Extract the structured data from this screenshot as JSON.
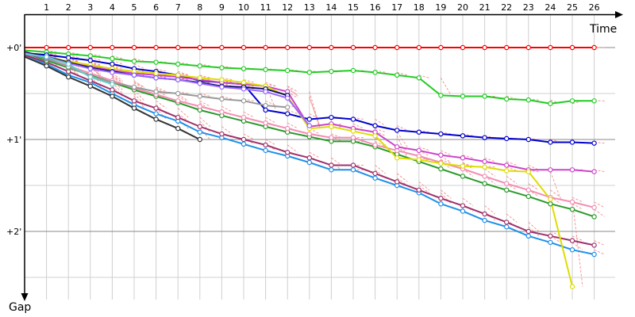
{
  "chart_data": {
    "type": "line",
    "title": "",
    "xlabel": "Time",
    "ylabel": "Gap",
    "x_ticks": [
      1,
      2,
      3,
      4,
      5,
      6,
      7,
      8,
      9,
      10,
      11,
      12,
      13,
      14,
      15,
      16,
      17,
      18,
      19,
      20,
      21,
      22,
      23,
      24,
      25,
      26
    ],
    "y_ticks": [
      {
        "value": 0,
        "label": "+0'"
      },
      {
        "value": 1,
        "label": "+1'"
      },
      {
        "value": 2,
        "label": "+2'"
      }
    ],
    "xlim": [
      0,
      27.3
    ],
    "ylim": [
      0,
      2.75
    ],
    "y_direction": "down",
    "grid": true,
    "colors": {
      "axis": "#000000",
      "grid_major": "#888888",
      "grid_minor": "#d0d0d0",
      "connector": "#f08080"
    },
    "series": [
      {
        "color": "#ff0000",
        "x": [
          0,
          1,
          2,
          3,
          4,
          5,
          6,
          7,
          8,
          9,
          10,
          11,
          12,
          13,
          14,
          15,
          16,
          17,
          18,
          19,
          20,
          21,
          22,
          23,
          24,
          25,
          26
        ],
        "values": [
          0,
          0,
          0,
          0,
          0,
          0,
          0,
          0,
          0,
          0,
          0,
          0,
          0,
          0,
          0,
          0,
          0,
          0,
          0,
          0,
          0,
          0,
          0,
          0,
          0,
          0,
          0
        ]
      },
      {
        "color": "#22cc22",
        "x": [
          0,
          1,
          2,
          3,
          4,
          5,
          6,
          7,
          8,
          9,
          10,
          11,
          12,
          13,
          14,
          15,
          16,
          17,
          18,
          19,
          20,
          21,
          22,
          23,
          24,
          25,
          26
        ],
        "values": [
          0.03,
          0.05,
          0.07,
          0.09,
          0.12,
          0.15,
          0.16,
          0.18,
          0.2,
          0.22,
          0.23,
          0.24,
          0.25,
          0.27,
          0.26,
          0.25,
          0.27,
          0.3,
          0.33,
          0.52,
          0.53,
          0.53,
          0.56,
          0.57,
          0.61,
          0.58,
          0.58
        ]
      },
      {
        "color": "#0000cc",
        "x": [
          0,
          1,
          2,
          3,
          4,
          5,
          6,
          7,
          8,
          9,
          10,
          11,
          12,
          13,
          14,
          15,
          16,
          17,
          18,
          19,
          20,
          21,
          22,
          23,
          24,
          25,
          26
        ],
        "values": [
          0.06,
          0.08,
          0.11,
          0.14,
          0.18,
          0.23,
          0.26,
          0.3,
          0.36,
          0.38,
          0.4,
          0.68,
          0.72,
          0.78,
          0.76,
          0.78,
          0.85,
          0.9,
          0.92,
          0.94,
          0.96,
          0.98,
          0.99,
          1.0,
          1.03,
          1.03,
          1.04
        ]
      },
      {
        "color": "#1e90e8",
        "x": [
          0,
          1,
          2,
          3,
          4,
          5,
          6,
          7,
          8,
          9,
          10,
          11,
          12,
          13,
          14,
          15,
          16,
          17,
          18,
          19,
          20,
          21,
          22,
          23,
          24,
          25,
          26
        ],
        "values": [
          0.08,
          0.18,
          0.3,
          0.38,
          0.5,
          0.62,
          0.72,
          0.8,
          0.92,
          0.98,
          1.05,
          1.12,
          1.18,
          1.25,
          1.33,
          1.33,
          1.42,
          1.5,
          1.58,
          1.7,
          1.78,
          1.88,
          1.95,
          2.05,
          2.12,
          2.2,
          2.25
        ]
      },
      {
        "color": "#a0306a",
        "x": [
          0,
          1,
          2,
          3,
          4,
          5,
          6,
          7,
          8,
          9,
          10,
          11,
          12,
          13,
          14,
          15,
          16,
          17,
          18,
          19,
          20,
          21,
          22,
          23,
          24,
          25,
          26
        ],
        "values": [
          0.08,
          0.16,
          0.26,
          0.36,
          0.46,
          0.58,
          0.66,
          0.76,
          0.86,
          0.94,
          1.0,
          1.06,
          1.14,
          1.2,
          1.28,
          1.28,
          1.37,
          1.46,
          1.55,
          1.64,
          1.72,
          1.81,
          1.9,
          2.0,
          2.05,
          2.1,
          2.15
        ]
      },
      {
        "color": "#2a9a2a",
        "x": [
          0,
          1,
          2,
          3,
          4,
          5,
          6,
          7,
          8,
          9,
          10,
          11,
          12,
          13,
          14,
          15,
          16,
          17,
          18,
          19,
          20,
          21,
          22,
          23,
          24,
          25,
          26
        ],
        "values": [
          0.06,
          0.14,
          0.22,
          0.3,
          0.38,
          0.46,
          0.53,
          0.6,
          0.68,
          0.74,
          0.8,
          0.86,
          0.92,
          0.97,
          1.02,
          1.02,
          1.08,
          1.16,
          1.24,
          1.32,
          1.4,
          1.48,
          1.55,
          1.62,
          1.7,
          1.76,
          1.84
        ]
      },
      {
        "color": "#f48cb4",
        "x": [
          0,
          1,
          2,
          3,
          4,
          5,
          6,
          7,
          8,
          9,
          10,
          11,
          12,
          13,
          14,
          15,
          16,
          17,
          18,
          19,
          20,
          21,
          22,
          23,
          24,
          25,
          26
        ],
        "values": [
          0.05,
          0.12,
          0.2,
          0.28,
          0.36,
          0.44,
          0.51,
          0.58,
          0.64,
          0.7,
          0.76,
          0.82,
          0.88,
          0.94,
          0.98,
          0.98,
          1.06,
          1.12,
          1.18,
          1.25,
          1.32,
          1.4,
          1.48,
          1.55,
          1.63,
          1.68,
          1.74
        ]
      },
      {
        "color": "#cc44cc",
        "x": [
          0,
          1,
          2,
          3,
          4,
          5,
          6,
          7,
          8,
          9,
          10,
          11,
          12,
          13,
          14,
          15,
          16,
          17,
          18,
          19,
          20,
          21,
          22,
          23,
          24,
          25,
          26
        ],
        "values": [
          0.07,
          0.11,
          0.16,
          0.2,
          0.25,
          0.28,
          0.3,
          0.32,
          0.35,
          0.38,
          0.4,
          0.42,
          0.48,
          0.86,
          0.83,
          0.88,
          0.92,
          1.08,
          1.12,
          1.17,
          1.2,
          1.24,
          1.28,
          1.33,
          1.33,
          1.33,
          1.35
        ]
      },
      {
        "color": "#dddd00",
        "x": [
          0,
          1,
          2,
          3,
          4,
          5,
          6,
          7,
          8,
          9,
          10,
          11,
          12,
          13,
          14,
          15,
          16,
          17,
          18,
          19,
          20,
          21,
          22,
          23,
          24,
          25
        ],
        "values": [
          0.06,
          0.1,
          0.15,
          0.19,
          0.23,
          0.26,
          0.28,
          0.3,
          0.33,
          0.35,
          0.38,
          0.42,
          0.53,
          0.88,
          0.86,
          0.91,
          0.96,
          1.2,
          1.22,
          1.26,
          1.29,
          1.3,
          1.34,
          1.35,
          1.65,
          2.6
        ]
      },
      {
        "color": "#999999",
        "x": [
          0,
          1,
          2,
          3,
          4,
          5,
          6,
          7,
          8,
          9,
          10,
          11,
          12
        ],
        "values": [
          0.04,
          0.12,
          0.21,
          0.31,
          0.38,
          0.43,
          0.48,
          0.5,
          0.53,
          0.56,
          0.58,
          0.63,
          0.65
        ]
      },
      {
        "color": "#111166",
        "x": [
          0,
          1,
          2,
          3,
          4,
          5,
          6,
          7,
          8,
          9,
          10,
          11,
          12
        ],
        "values": [
          0.05,
          0.1,
          0.16,
          0.22,
          0.26,
          0.3,
          0.33,
          0.35,
          0.38,
          0.42,
          0.43,
          0.45,
          0.52
        ]
      },
      {
        "color": "#9966ff",
        "x": [
          0,
          1,
          2,
          3,
          4,
          5,
          6,
          7,
          8,
          9,
          10,
          11,
          12,
          13
        ],
        "values": [
          0.06,
          0.11,
          0.17,
          0.23,
          0.27,
          0.3,
          0.33,
          0.35,
          0.39,
          0.43,
          0.45,
          0.48,
          0.55,
          0.85
        ]
      },
      {
        "color": "#66cccc",
        "x": [
          0,
          1,
          2,
          3,
          4
        ],
        "values": [
          0.07,
          0.1,
          0.18,
          0.32,
          0.4
        ]
      },
      {
        "color": "#333333",
        "x": [
          0,
          1,
          2,
          3,
          4,
          5,
          6,
          7,
          8
        ],
        "values": [
          0.1,
          0.2,
          0.32,
          0.42,
          0.53,
          0.66,
          0.78,
          0.88,
          1.0
        ]
      }
    ]
  }
}
